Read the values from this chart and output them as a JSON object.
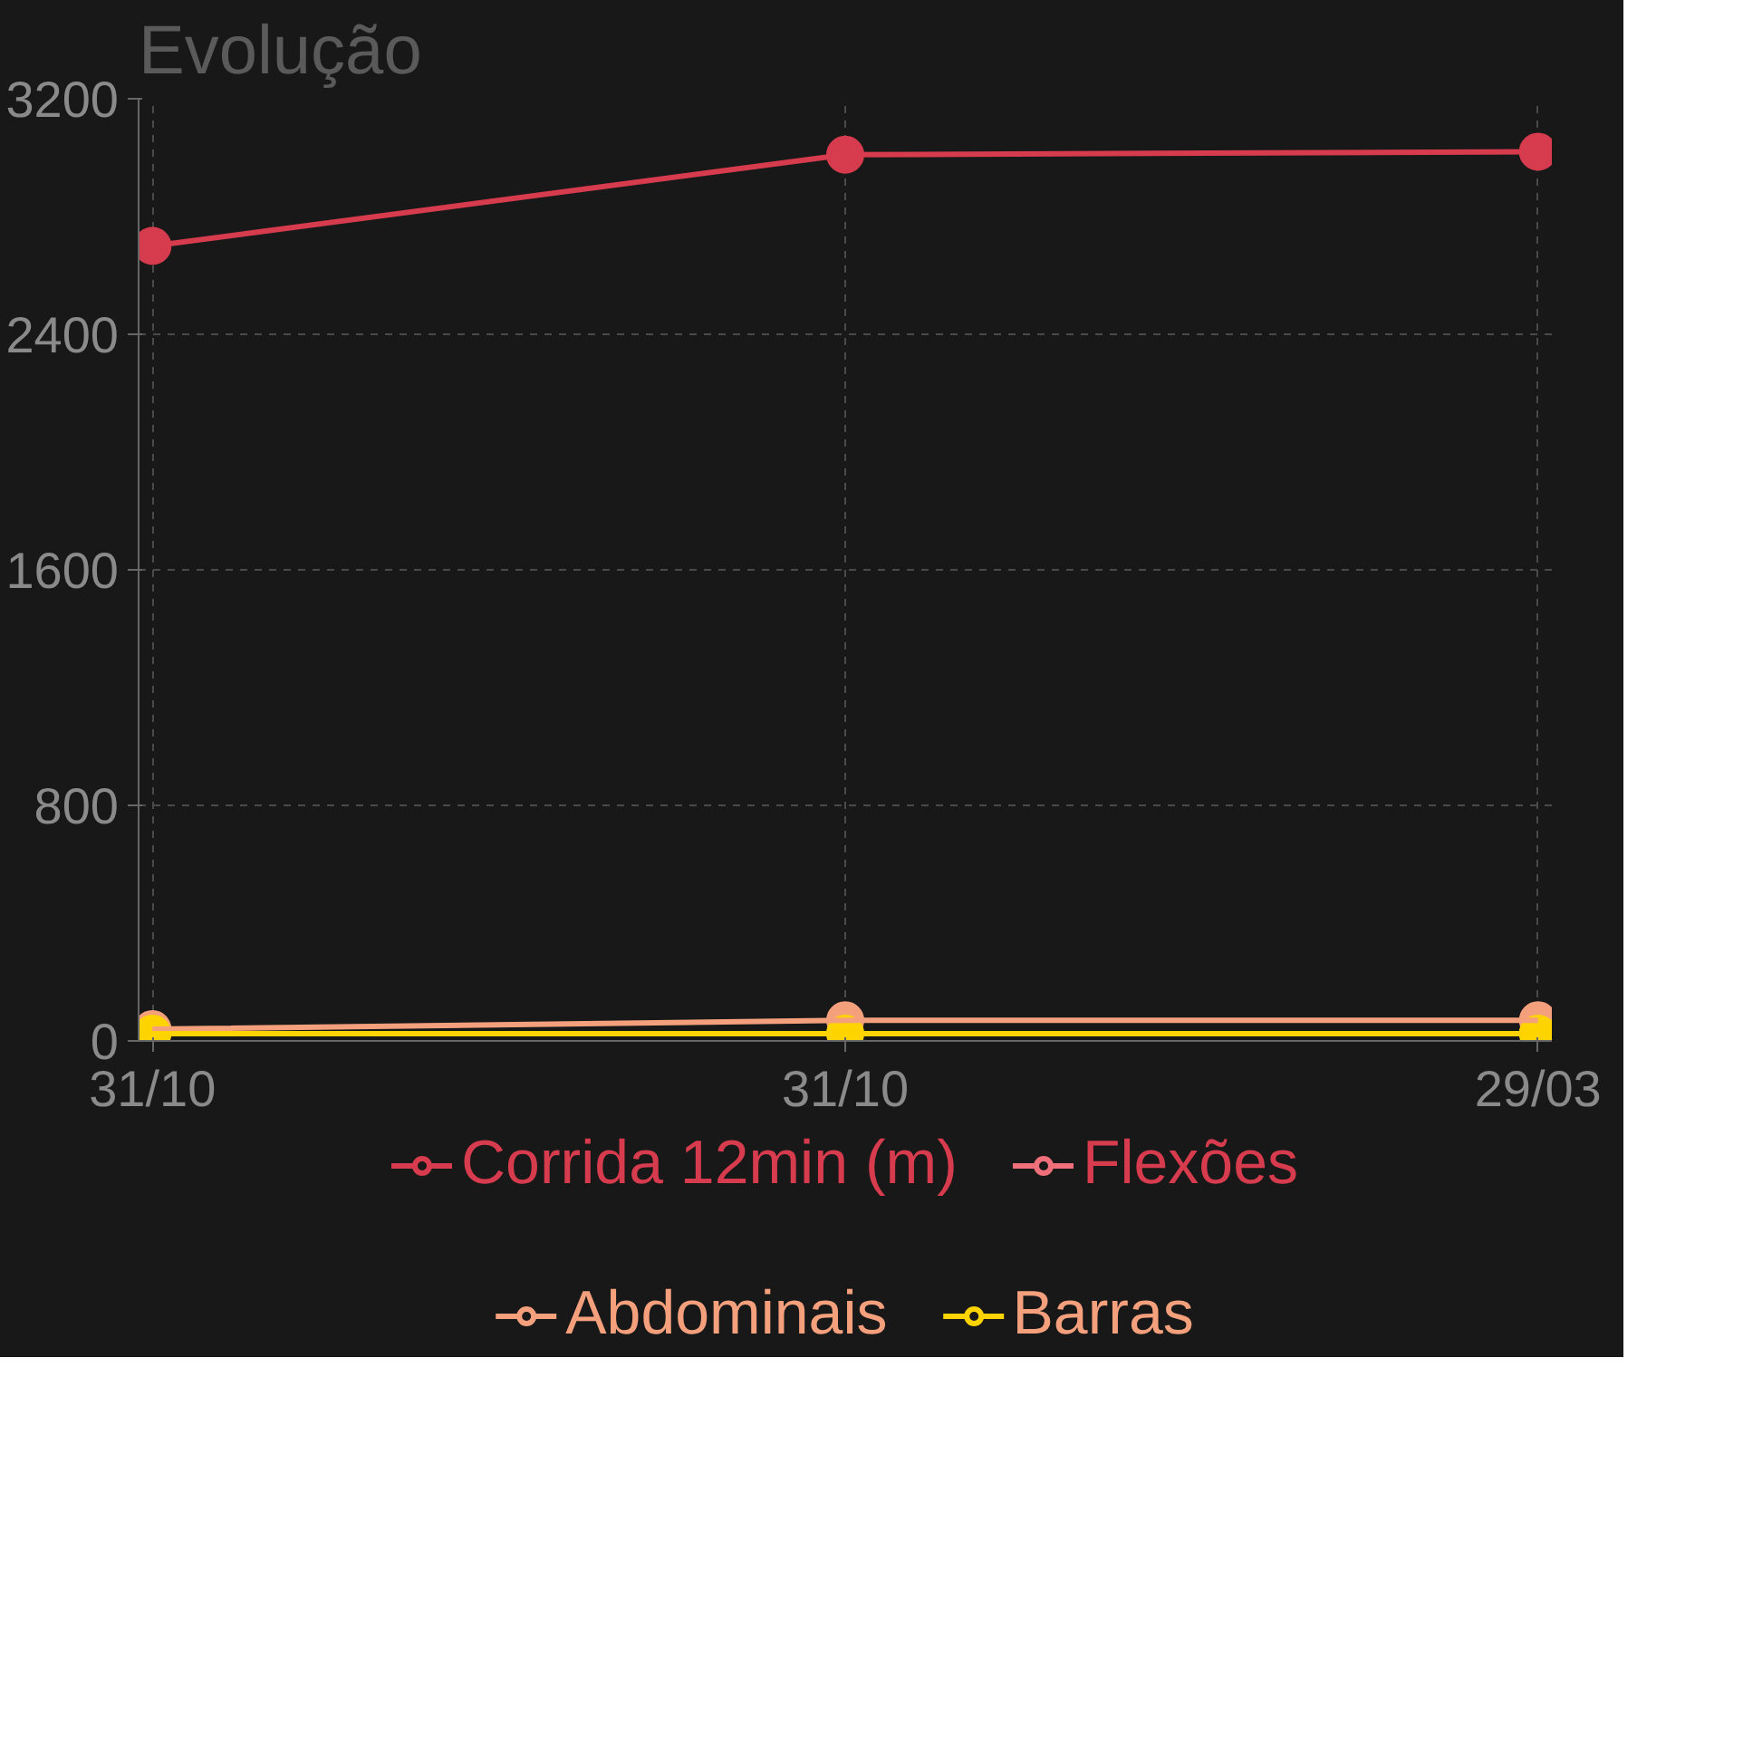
{
  "chart_data": {
    "type": "line",
    "title": "Evolução",
    "categories": [
      "31/10",
      "31/10",
      "29/03"
    ],
    "ylim": [
      0,
      3200
    ],
    "yticks": [
      0,
      800,
      1600,
      2400,
      3200
    ],
    "grid": true,
    "legend": "bottom",
    "marker": "circle",
    "line_style": "solid",
    "series": [
      {
        "name": "Corrida 12min (m)",
        "color": "#d63b4e",
        "values": [
          2700,
          3010,
          3020
        ]
      },
      {
        "name": "Flexões",
        "color": "#ef6f7a",
        "values": [
          null,
          null,
          null
        ]
      },
      {
        "name": "Abdominais",
        "color": "#f5a07d",
        "values": [
          40,
          70,
          70
        ]
      },
      {
        "name": "Barras",
        "color": "#fdd400",
        "values": [
          25,
          25,
          25
        ]
      }
    ]
  }
}
